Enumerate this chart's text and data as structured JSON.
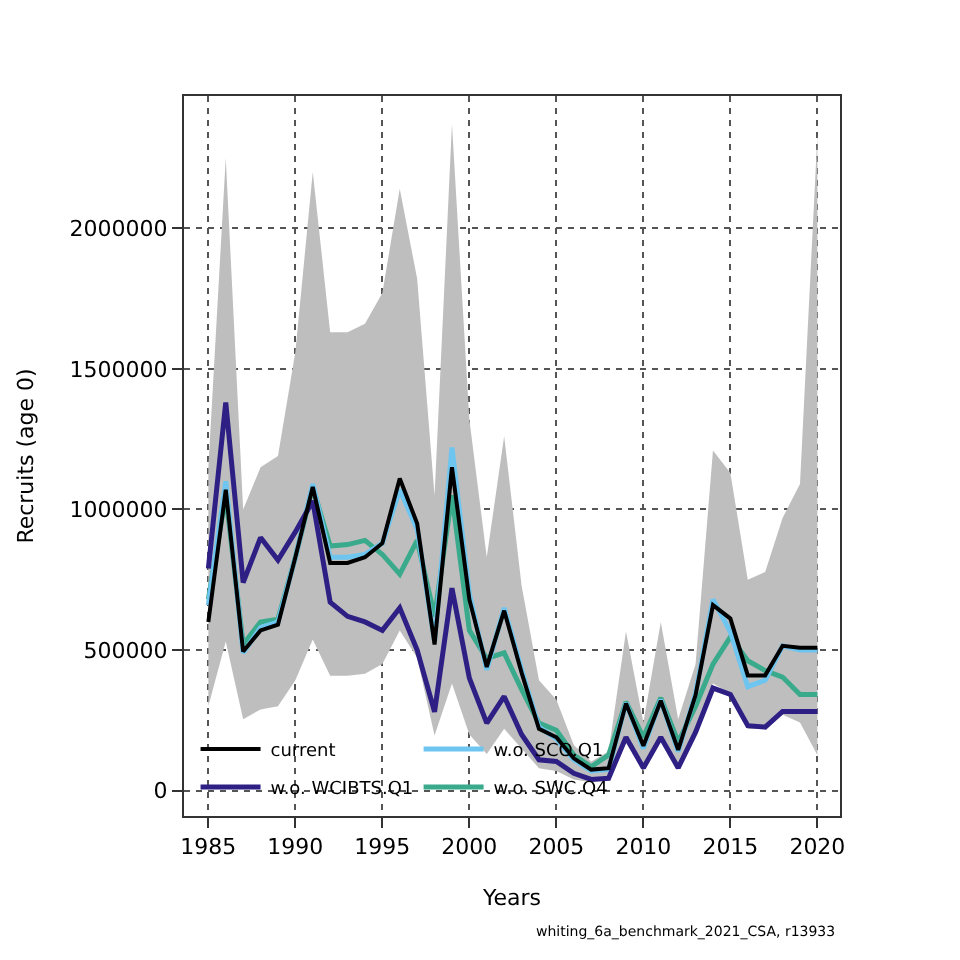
{
  "chart_data": {
    "type": "line",
    "xlabel": "Years",
    "ylabel": "Recruits (age 0)",
    "x": [
      1985,
      1986,
      1987,
      1988,
      1989,
      1990,
      1991,
      1992,
      1993,
      1994,
      1995,
      1996,
      1997,
      1998,
      1999,
      2000,
      2001,
      2002,
      2003,
      2004,
      2005,
      2006,
      2007,
      2008,
      2009,
      2010,
      2011,
      2012,
      2013,
      2014,
      2015,
      2016,
      2017,
      2018,
      2019,
      2020
    ],
    "series": [
      {
        "name": "current",
        "color": "#000000",
        "values": [
          600000,
          1070000,
          495000,
          570000,
          590000,
          830000,
          1080000,
          810000,
          810000,
          830000,
          880000,
          1110000,
          950000,
          520000,
          1150000,
          680000,
          440000,
          640000,
          420000,
          220000,
          190000,
          115000,
          75000,
          80000,
          310000,
          160000,
          320000,
          145000,
          340000,
          660000,
          612000,
          410000,
          410000,
          515000,
          508000,
          508000
        ],
        "lower": [
          300000,
          530000,
          254000,
          289000,
          300000,
          393000,
          538000,
          409000,
          409000,
          416000,
          450000,
          570000,
          473000,
          196000,
          381000,
          200000,
          130000,
          220000,
          150000,
          80000,
          70000,
          40000,
          30000,
          40000,
          170000,
          70000,
          175000,
          80000,
          220000,
          381000,
          346000,
          219000,
          219000,
          270000,
          242000,
          127000
        ],
        "upper": [
          1150000,
          2250000,
          1000000,
          1150000,
          1190000,
          1560000,
          2200000,
          1630000,
          1630000,
          1660000,
          1770000,
          2140000,
          1820000,
          1050000,
          2370000,
          1320000,
          830000,
          1260000,
          730000,
          393000,
          323000,
          162000,
          104000,
          139000,
          566000,
          242000,
          600000,
          254000,
          450000,
          1210000,
          1130000,
          750000,
          778000,
          970000,
          1090000,
          2330000
        ]
      },
      {
        "name": "w.o. WCIBTS.Q1",
        "color": "#2e1f85",
        "values": [
          790000,
          1380000,
          740000,
          900000,
          820000,
          920000,
          1030000,
          670000,
          620000,
          600000,
          570000,
          650000,
          500000,
          280000,
          720000,
          400000,
          240000,
          335000,
          200000,
          110000,
          104000,
          62000,
          40000,
          44000,
          190000,
          81000,
          190000,
          81000,
          208000,
          365000,
          342000,
          231000,
          226000,
          282000,
          282000,
          282000
        ]
      },
      {
        "name": "w.o. SCO.Q1",
        "color": "#6ec6f0",
        "values": [
          660000,
          1100000,
          490000,
          580000,
          600000,
          830000,
          1090000,
          830000,
          830000,
          840000,
          880000,
          1070000,
          930000,
          530000,
          1220000,
          700000,
          430000,
          650000,
          430000,
          226000,
          185000,
          110000,
          70000,
          76000,
          312000,
          150000,
          323000,
          139000,
          346000,
          680000,
          565000,
          370000,
          393000,
          515000,
          500000,
          500000
        ]
      },
      {
        "name": "w.o. SWC.Q4",
        "color": "#3aaa8c",
        "values": [
          680000,
          1050000,
          520000,
          600000,
          610000,
          830000,
          1080000,
          870000,
          875000,
          890000,
          840000,
          770000,
          890000,
          620000,
          1050000,
          570000,
          470000,
          490000,
          360000,
          240000,
          215000,
          127000,
          85000,
          127000,
          316000,
          190000,
          330000,
          173000,
          300000,
          450000,
          547000,
          462000,
          427000,
          404000,
          342000,
          342000
        ]
      }
    ],
    "xlim": [
      1983.6,
      2021.3
    ],
    "xticks": [
      1985,
      1990,
      1995,
      2000,
      2005,
      2010,
      2015,
      2020
    ],
    "ylim": [
      -90000,
      2470000
    ],
    "yticks": [
      0,
      500000,
      1000000,
      1500000,
      2000000
    ],
    "grid": true,
    "legend": "bottom left",
    "marker": "none",
    "line_style": "solid",
    "annotations": [
      "whiting_6a_benchmark_2021_CSA, r13933"
    ]
  }
}
